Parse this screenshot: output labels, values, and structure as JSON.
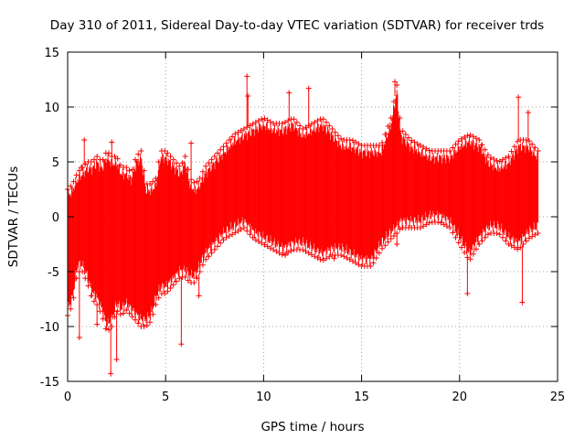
{
  "chart_data": {
    "type": "scatter",
    "title": "Day 310 of 2011, Sidereal Day-to-day VTEC variation (SDTVAR) for receiver trds",
    "xlabel": "GPS time / hours",
    "ylabel": "SDTVAR / TECUs",
    "xlim": [
      0,
      25
    ],
    "ylim": [
      -15,
      15
    ],
    "xticks": [
      "0",
      "5",
      "10",
      "15",
      "20",
      "25"
    ],
    "yticks": [
      "15",
      "10",
      "5",
      "0",
      "-5",
      "-10",
      "-15"
    ],
    "grid": true,
    "marker": "+",
    "series": [
      {
        "name": "SDTVAR",
        "color": "#ff0000",
        "x": [
          0.0,
          0.25,
          0.5,
          0.75,
          1.0,
          1.25,
          1.5,
          1.75,
          2.0,
          2.25,
          2.5,
          2.75,
          3.0,
          3.25,
          3.5,
          3.75,
          4.0,
          4.25,
          4.5,
          4.75,
          5.0,
          5.25,
          5.5,
          5.75,
          6.0,
          6.25,
          6.5,
          6.75,
          7.0,
          7.5,
          8.0,
          8.5,
          9.0,
          9.5,
          10.0,
          10.5,
          11.0,
          11.5,
          12.0,
          12.5,
          13.0,
          13.5,
          14.0,
          14.5,
          15.0,
          15.5,
          16.0,
          16.5,
          16.8,
          17.0,
          17.5,
          18.0,
          18.5,
          19.0,
          19.5,
          20.0,
          20.5,
          21.0,
          21.5,
          22.0,
          22.5,
          23.0,
          23.5,
          24.0
        ],
        "upper": [
          2.5,
          3.0,
          4.0,
          4.5,
          5.0,
          5.0,
          5.5,
          5.0,
          6.0,
          5.5,
          5.5,
          4.5,
          4.5,
          4.0,
          5.5,
          6.0,
          3.0,
          3.0,
          3.5,
          6.0,
          6.0,
          5.5,
          5.0,
          4.5,
          5.5,
          3.5,
          3.0,
          3.5,
          4.5,
          5.5,
          6.5,
          7.5,
          8.0,
          8.5,
          9.0,
          8.5,
          8.5,
          9.0,
          8.0,
          8.5,
          9.0,
          8.0,
          7.0,
          7.0,
          6.5,
          6.5,
          6.5,
          9.0,
          12.0,
          8.0,
          7.0,
          6.5,
          6.0,
          6.0,
          6.0,
          7.0,
          7.5,
          7.0,
          5.5,
          5.0,
          5.5,
          7.0,
          7.0,
          6.0
        ],
        "lower": [
          -9.0,
          -8.0,
          -5.0,
          -5.0,
          -6.0,
          -7.5,
          -8.0,
          -9.0,
          -10.5,
          -10.0,
          -8.5,
          -9.0,
          -8.5,
          -9.0,
          -9.5,
          -10.0,
          -10.0,
          -9.5,
          -8.0,
          -7.0,
          -7.0,
          -6.5,
          -6.0,
          -5.5,
          -5.5,
          -6.0,
          -6.0,
          -5.0,
          -4.0,
          -3.0,
          -2.0,
          -1.5,
          -1.0,
          -2.0,
          -2.5,
          -3.0,
          -3.5,
          -3.0,
          -3.0,
          -3.5,
          -4.0,
          -3.5,
          -3.5,
          -4.0,
          -4.5,
          -4.5,
          -3.0,
          -2.0,
          -1.5,
          -1.0,
          -1.0,
          -1.0,
          -0.5,
          -0.5,
          -1.0,
          -2.5,
          -4.0,
          -2.5,
          -1.5,
          -1.5,
          -2.5,
          -3.0,
          -2.0,
          -1.5
        ]
      }
    ],
    "outliers": [
      {
        "x": 0.6,
        "y": -11.0
      },
      {
        "x": 0.7,
        "y": 4.5
      },
      {
        "x": 0.85,
        "y": 7.0
      },
      {
        "x": 1.5,
        "y": -9.8
      },
      {
        "x": 2.2,
        "y": -14.3
      },
      {
        "x": 2.25,
        "y": 6.8
      },
      {
        "x": 2.5,
        "y": -13.0
      },
      {
        "x": 5.8,
        "y": -11.6
      },
      {
        "x": 6.3,
        "y": 6.7
      },
      {
        "x": 6.7,
        "y": -7.2
      },
      {
        "x": 9.15,
        "y": 12.8
      },
      {
        "x": 9.2,
        "y": 11.0
      },
      {
        "x": 11.3,
        "y": 11.3
      },
      {
        "x": 11.1,
        "y": -3.5
      },
      {
        "x": 12.3,
        "y": 11.7
      },
      {
        "x": 13.6,
        "y": -3.8
      },
      {
        "x": 16.7,
        "y": 12.3
      },
      {
        "x": 16.8,
        "y": -2.5
      },
      {
        "x": 20.4,
        "y": -7.0
      },
      {
        "x": 21.1,
        "y": 5.0
      },
      {
        "x": 23.0,
        "y": 10.9
      },
      {
        "x": 23.2,
        "y": -7.8
      },
      {
        "x": 23.5,
        "y": 9.5
      }
    ]
  }
}
